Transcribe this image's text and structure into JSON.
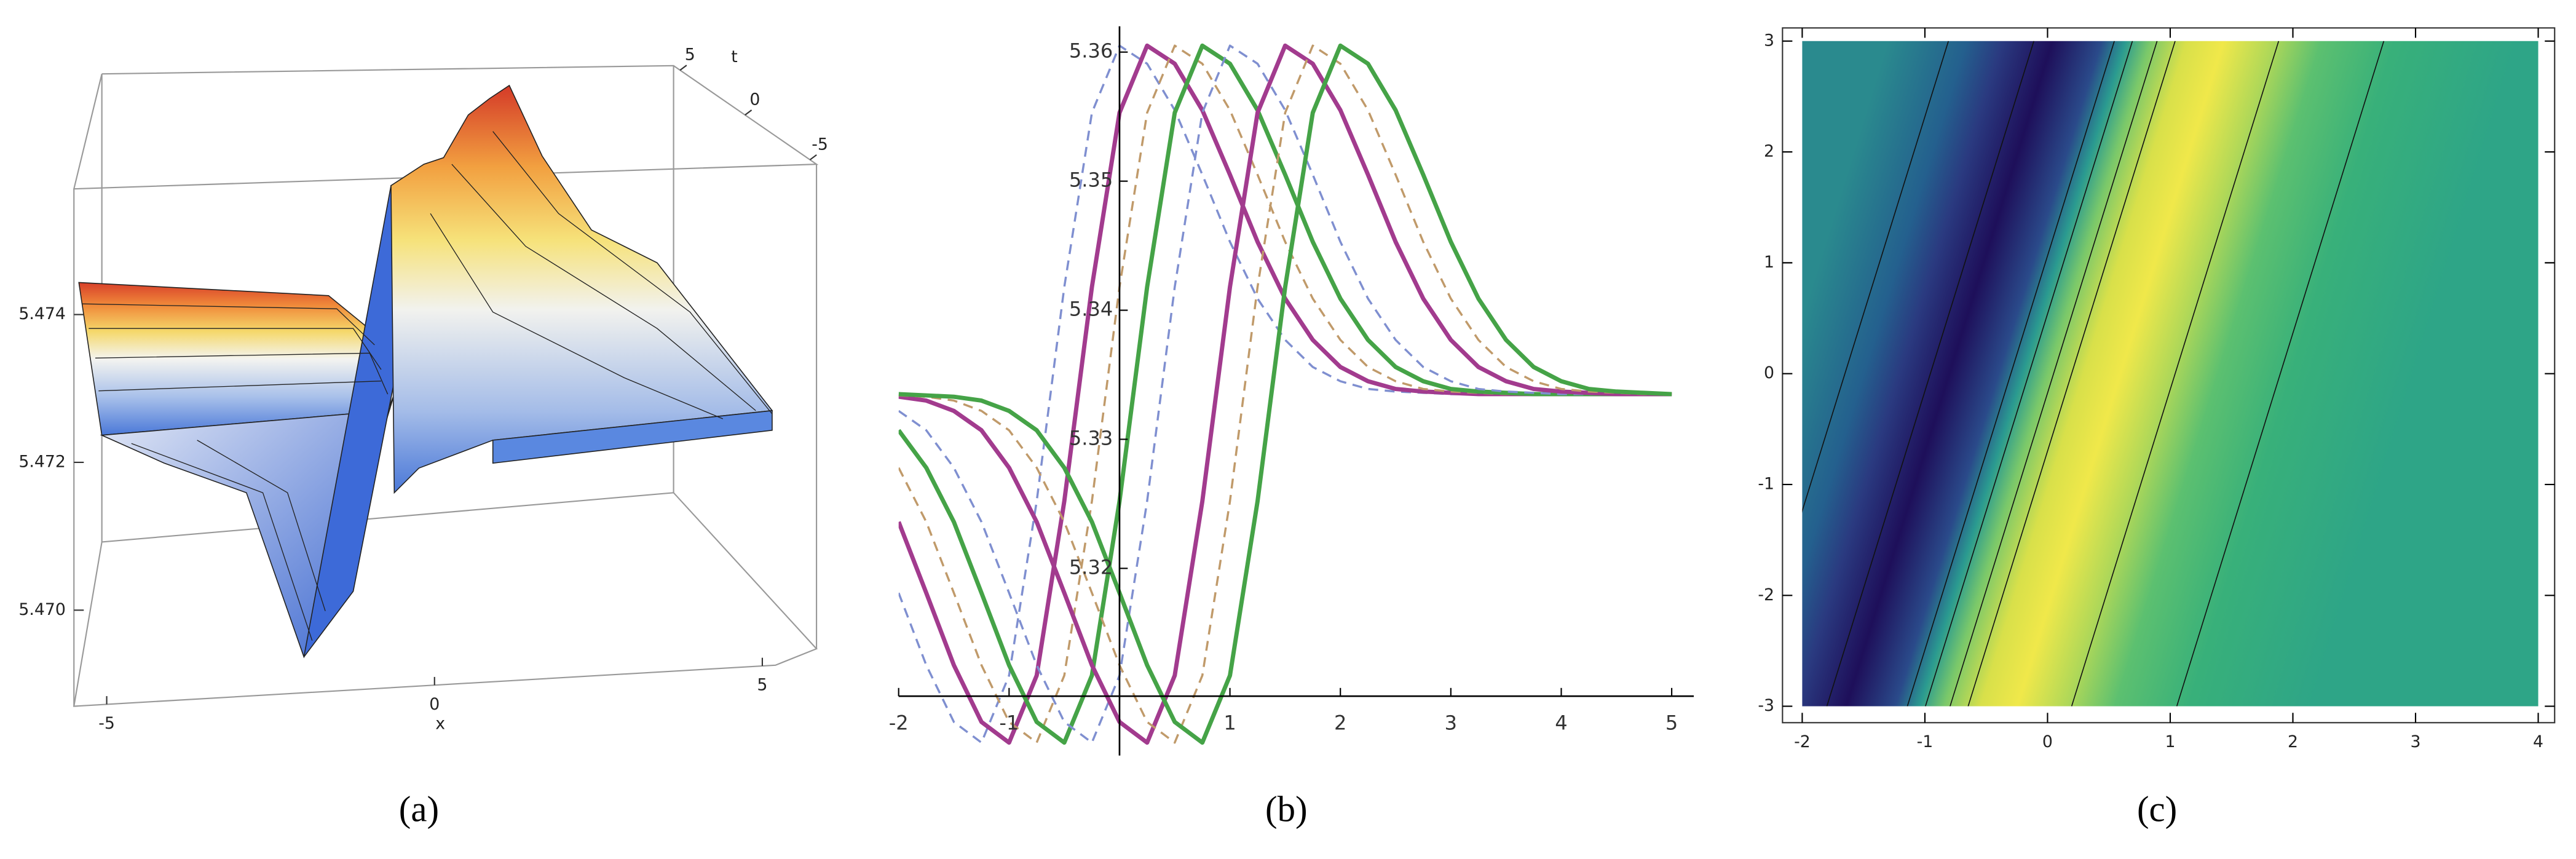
{
  "chart_data": [
    {
      "type": "surface3d",
      "caption": "(a)",
      "xlabel": "x",
      "tlabel": "t",
      "xlim": [
        -5.5,
        5.2
      ],
      "xticks": [
        -5,
        0,
        5
      ],
      "tlim": [
        5.5,
        -5.5
      ],
      "tticks": [
        5,
        0,
        -5
      ],
      "zlim": [
        5.4687,
        5.4757
      ],
      "zticks": [
        {
          "value": 5.47,
          "label": "5.470"
        },
        {
          "value": 5.472,
          "label": "5.472"
        },
        {
          "value": 5.474,
          "label": "5.474"
        }
      ]
    },
    {
      "type": "line",
      "caption": "(b)",
      "x": [
        -2,
        -1.75,
        -1.5,
        -1.25,
        -1,
        -0.75,
        -0.5,
        -0.25,
        0,
        0.25,
        0.5,
        0.75,
        1,
        1.25,
        1.5,
        1.75,
        2,
        2.25,
        2.5,
        2.75,
        3,
        3.25,
        3.5,
        3.75,
        4,
        4.25,
        4.5,
        4.75,
        5
      ],
      "xlim": [
        -2,
        5.2
      ],
      "ylim": [
        5.3055,
        5.362
      ],
      "axes_origin": [
        0,
        5.3101
      ],
      "xticks": [
        -2,
        -1,
        1,
        2,
        3,
        4,
        5
      ],
      "yticks": [
        5.32,
        5.33,
        5.34,
        5.35,
        5.36
      ],
      "series": [
        {
          "color": "#7f8fd0",
          "dash": true,
          "values": [
            5.3181,
            5.3125,
            5.3081,
            5.3065,
            5.3117,
            5.3252,
            5.3418,
            5.3553,
            5.3605,
            5.3591,
            5.3555,
            5.3505,
            5.3453,
            5.3409,
            5.3377,
            5.3356,
            5.3345,
            5.3339,
            5.3337,
            5.3336,
            5.3335,
            5.3335,
            5.3335,
            5.3335,
            5.3335,
            5.3335,
            5.3335,
            5.3335,
            5.3335
          ]
        },
        {
          "color": "#a23b8e",
          "dash": false,
          "values": [
            5.3236,
            5.3181,
            5.3125,
            5.3081,
            5.3065,
            5.3117,
            5.3252,
            5.3418,
            5.3553,
            5.3605,
            5.3591,
            5.3555,
            5.3505,
            5.3453,
            5.3409,
            5.3377,
            5.3356,
            5.3345,
            5.3339,
            5.3337,
            5.3336,
            5.3335,
            5.3335,
            5.3335,
            5.3335,
            5.3335,
            5.3335,
            5.3335,
            5.3335
          ]
        },
        {
          "color": "#c09a6a",
          "dash": true,
          "values": [
            5.3278,
            5.3236,
            5.3181,
            5.3125,
            5.3081,
            5.3065,
            5.3117,
            5.3252,
            5.3418,
            5.3553,
            5.3605,
            5.3591,
            5.3555,
            5.3505,
            5.3453,
            5.3409,
            5.3377,
            5.3356,
            5.3345,
            5.3339,
            5.3337,
            5.3336,
            5.3335,
            5.3335,
            5.3335,
            5.3335,
            5.3335,
            5.3335,
            5.3335
          ]
        },
        {
          "color": "#45a347",
          "dash": false,
          "values": [
            5.3307,
            5.3278,
            5.3236,
            5.3181,
            5.3125,
            5.3081,
            5.3065,
            5.3117,
            5.3252,
            5.3418,
            5.3553,
            5.3605,
            5.3591,
            5.3555,
            5.3505,
            5.3453,
            5.3409,
            5.3377,
            5.3356,
            5.3345,
            5.3339,
            5.3337,
            5.3336,
            5.3335,
            5.3335,
            5.3335,
            5.3335,
            5.3335,
            5.3335
          ]
        },
        {
          "color": "#7f8fd0",
          "dash": true,
          "values": [
            5.3322,
            5.3307,
            5.3278,
            5.3236,
            5.3181,
            5.3125,
            5.3081,
            5.3065,
            5.3117,
            5.3252,
            5.3418,
            5.3553,
            5.3605,
            5.3591,
            5.3555,
            5.3505,
            5.3453,
            5.3409,
            5.3377,
            5.3356,
            5.3345,
            5.3339,
            5.3337,
            5.3336,
            5.3335,
            5.3335,
            5.3335,
            5.3335,
            5.3335
          ]
        },
        {
          "color": "#a23b8e",
          "dash": false,
          "values": [
            5.3333,
            5.333,
            5.3322,
            5.3307,
            5.3278,
            5.3236,
            5.3181,
            5.3125,
            5.3081,
            5.3065,
            5.3117,
            5.3252,
            5.3418,
            5.3553,
            5.3605,
            5.3591,
            5.3555,
            5.3505,
            5.3453,
            5.3409,
            5.3377,
            5.3356,
            5.3345,
            5.3339,
            5.3337,
            5.3336,
            5.3335,
            5.3335,
            5.3335
          ]
        },
        {
          "color": "#c09a6a",
          "dash": true,
          "values": [
            5.3334,
            5.3333,
            5.333,
            5.3322,
            5.3307,
            5.3278,
            5.3236,
            5.3181,
            5.3125,
            5.3081,
            5.3065,
            5.3117,
            5.3252,
            5.3418,
            5.3553,
            5.3605,
            5.3591,
            5.3555,
            5.3505,
            5.3453,
            5.3409,
            5.3377,
            5.3356,
            5.3345,
            5.3339,
            5.3337,
            5.3336,
            5.3335,
            5.3335
          ]
        },
        {
          "color": "#45a347",
          "dash": false,
          "values": [
            5.3335,
            5.3334,
            5.3333,
            5.333,
            5.3322,
            5.3307,
            5.3278,
            5.3236,
            5.3181,
            5.3125,
            5.3081,
            5.3065,
            5.3117,
            5.3252,
            5.3418,
            5.3553,
            5.3605,
            5.3591,
            5.3555,
            5.3505,
            5.3453,
            5.3409,
            5.3377,
            5.3356,
            5.3345,
            5.3339,
            5.3337,
            5.3336,
            5.3335
          ]
        }
      ]
    },
    {
      "type": "density",
      "caption": "(c)",
      "xlim": [
        -2,
        4
      ],
      "ylim": [
        -3,
        3
      ],
      "xticks": [
        -2,
        -1,
        0,
        1,
        2,
        3,
        4
      ],
      "yticks": [
        -3,
        -2,
        -1,
        0,
        1,
        2,
        3
      ]
    }
  ]
}
